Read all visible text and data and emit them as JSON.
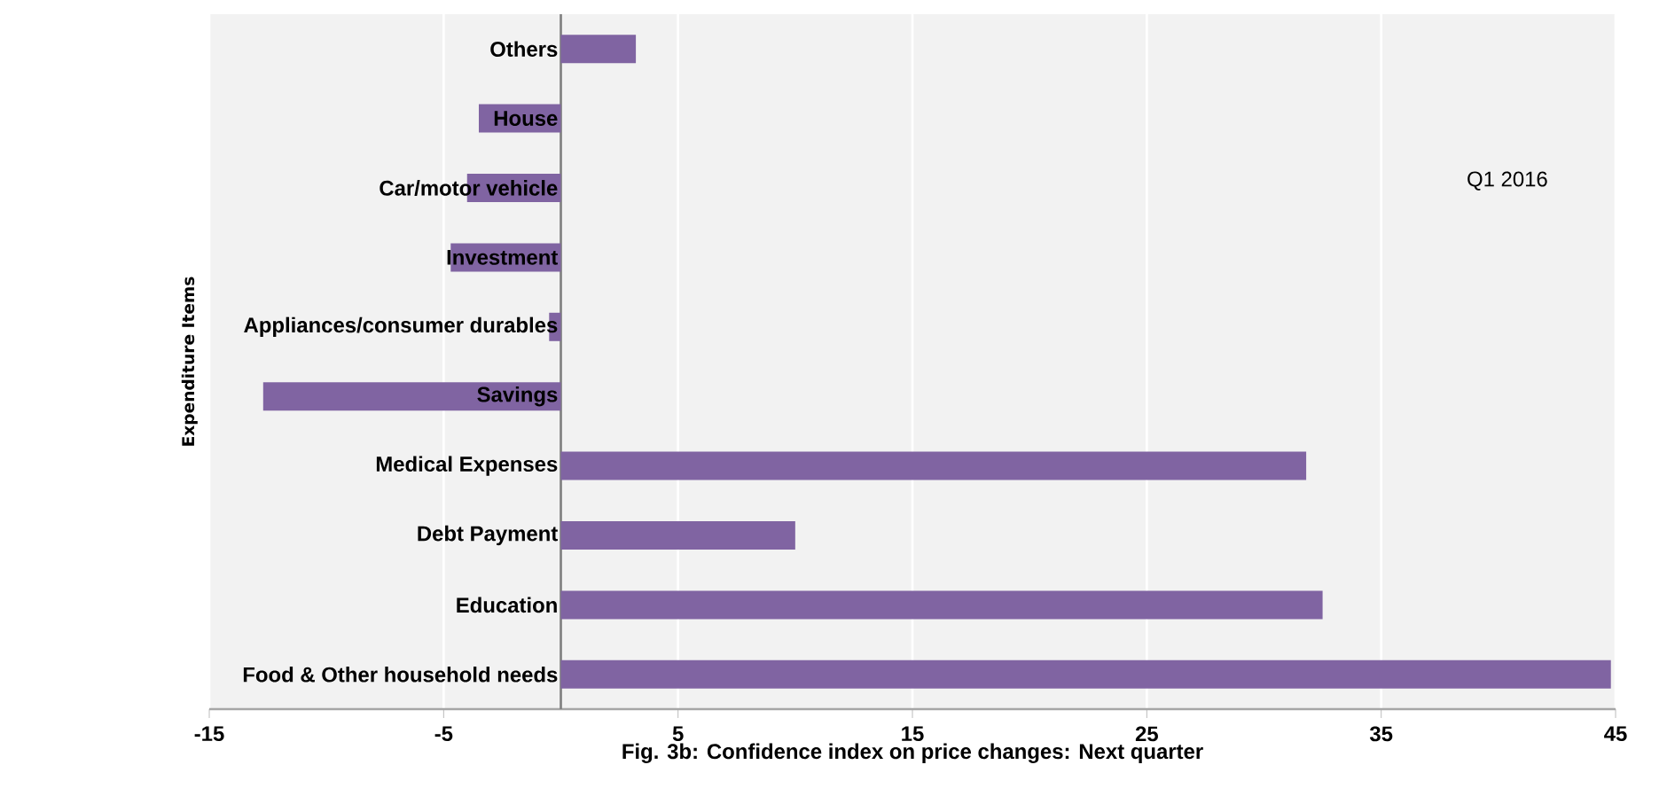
{
  "chart_data": {
    "type": "bar",
    "orientation": "horizontal",
    "xlabel": "Fig. 3b: Confidence index on price changes: Next quarter",
    "ylabel": "Expenditure Items",
    "categories": [
      "Others",
      "House",
      "Car/motor vehicle",
      "Investment",
      "Appliances/consumer durables",
      "Savings",
      "Medical Expenses",
      "Debt Payment",
      "Education",
      "Food & Other household needs"
    ],
    "values": [
      3.2,
      -3.5,
      -4.0,
      -4.7,
      -0.5,
      -12.7,
      31.8,
      10.0,
      32.5,
      44.8
    ],
    "color": "#8064a2",
    "xlim": [
      -15,
      45
    ],
    "xticks": [
      -15,
      -5,
      5,
      15,
      25,
      35,
      45
    ],
    "grid": "x",
    "annotations": [
      "Q1 2016"
    ]
  }
}
